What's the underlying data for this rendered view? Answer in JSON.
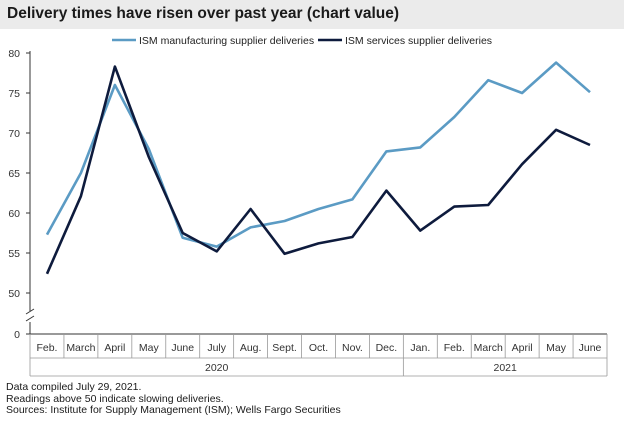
{
  "title": "Delivery times have risen over past year (chart value)",
  "footnotes": [
    "Data compiled July 29, 2021.",
    "Readings above 50 indicate slowing deliveries.",
    "Sources: Institute for Supply Management (ISM); Wells Fargo Securities"
  ],
  "chart_data": {
    "type": "line",
    "title": "Delivery times have risen over past year (chart value)",
    "categories": [
      "Feb.",
      "March",
      "April",
      "May",
      "June",
      "July",
      "Aug.",
      "Sept.",
      "Oct.",
      "Nov.",
      "Dec.",
      "Jan.",
      "Feb.",
      "March",
      "April",
      "May",
      "June"
    ],
    "year_groups": [
      {
        "label": "2020",
        "count": 11
      },
      {
        "label": "2021",
        "count": 6
      }
    ],
    "series": [
      {
        "name": "ISM manufacturing supplier deliveries",
        "color": "#5b9bc4",
        "values": [
          57.3,
          65.0,
          76.0,
          68.0,
          56.9,
          55.8,
          58.2,
          59.0,
          60.5,
          61.7,
          67.7,
          68.2,
          72.0,
          76.6,
          75.0,
          78.8,
          75.1
        ]
      },
      {
        "name": "ISM services supplier deliveries",
        "color": "#0e1b3d",
        "values": [
          52.4,
          62.1,
          78.3,
          67.0,
          57.5,
          55.2,
          60.5,
          54.9,
          56.2,
          57.0,
          62.8,
          57.8,
          60.8,
          61.0,
          66.1,
          70.4,
          68.5
        ]
      }
    ],
    "y_ticks": [
      0,
      50,
      55,
      60,
      65,
      70,
      75,
      80
    ],
    "ylim": [
      45,
      80
    ],
    "y_axis_break": true,
    "grid": false,
    "legend_position": "top"
  }
}
